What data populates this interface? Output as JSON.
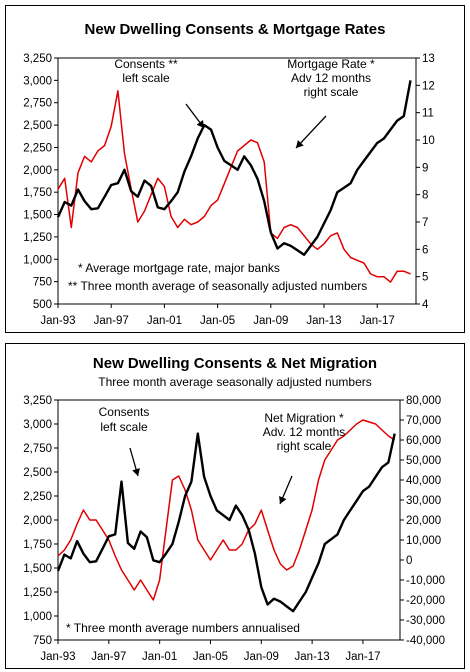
{
  "chart_data": [
    {
      "type": "line",
      "title": "New Dwelling Consents & Mortgage Rates",
      "subtitle": "",
      "x_ticks": [
        "Jan-93",
        "Jan-97",
        "Jan-01",
        "Jan-05",
        "Jan-09",
        "Jan-13",
        "Jan-17"
      ],
      "x_range": [
        "1993-01",
        "2019-12"
      ],
      "left_ylim": [
        500,
        3250
      ],
      "left_ticks": [
        "500",
        "750",
        "1,000",
        "1,250",
        "1,500",
        "1,750",
        "2,000",
        "2,250",
        "2,500",
        "2,750",
        "3,000",
        "3,250"
      ],
      "right_ylim": [
        4,
        13
      ],
      "right_ticks": [
        "4",
        "5",
        "6",
        "7",
        "8",
        "9",
        "10",
        "11",
        "12",
        "13"
      ],
      "grid": false,
      "annotations": [
        {
          "lines": [
            "Consents **",
            "left scale"
          ]
        },
        {
          "lines": [
            "Mortgage Rate *",
            "Adv 12 months",
            "right scale"
          ]
        }
      ],
      "notes": [
        "* Average mortgage rate, major banks",
        "** Three month average of seasonally adjusted numbers"
      ],
      "series": [
        {
          "axis": "left",
          "color": "#000000",
          "x": [
            "1993-01",
            "1993-07",
            "1994-01",
            "1994-07",
            "1995-01",
            "1995-07",
            "1996-01",
            "1996-07",
            "1997-01",
            "1997-07",
            "1998-01",
            "1998-07",
            "1999-01",
            "1999-07",
            "2000-01",
            "2000-07",
            "2001-01",
            "2001-07",
            "2002-01",
            "2002-07",
            "2003-01",
            "2003-07",
            "2004-01",
            "2004-07",
            "2005-01",
            "2005-07",
            "2006-01",
            "2006-07",
            "2007-01",
            "2007-07",
            "2008-01",
            "2008-07",
            "2009-01",
            "2009-07",
            "2010-01",
            "2010-07",
            "2011-01",
            "2011-07",
            "2012-01",
            "2012-07",
            "2013-01",
            "2013-07",
            "2014-01",
            "2014-07",
            "2015-01",
            "2015-07",
            "2016-01",
            "2016-07",
            "2017-01",
            "2017-07",
            "2018-01",
            "2018-07",
            "2019-01",
            "2019-07"
          ],
          "values": [
            1470,
            1640,
            1600,
            1780,
            1650,
            1560,
            1570,
            1700,
            1830,
            1850,
            2000,
            1760,
            1700,
            1880,
            1820,
            1580,
            1560,
            1650,
            1750,
            1980,
            2150,
            2350,
            2500,
            2450,
            2250,
            2100,
            2050,
            2000,
            2150,
            2050,
            1900,
            1650,
            1300,
            1120,
            1180,
            1150,
            1100,
            1050,
            1150,
            1250,
            1400,
            1550,
            1750,
            1800,
            1850,
            2000,
            2100,
            2200,
            2300,
            2350,
            2450,
            2550,
            2600,
            3000
          ]
        },
        {
          "axis": "right",
          "color": "#e00000",
          "x": [
            "1993-01",
            "1993-07",
            "1994-01",
            "1994-07",
            "1995-01",
            "1995-07",
            "1996-01",
            "1996-07",
            "1997-01",
            "1997-07",
            "1998-01",
            "1998-07",
            "1999-01",
            "1999-07",
            "2000-01",
            "2000-07",
            "2001-01",
            "2001-07",
            "2002-01",
            "2002-07",
            "2003-01",
            "2003-07",
            "2004-01",
            "2004-07",
            "2005-01",
            "2005-07",
            "2006-01",
            "2006-07",
            "2007-01",
            "2007-07",
            "2008-01",
            "2008-07",
            "2009-01",
            "2009-07",
            "2010-01",
            "2010-07",
            "2011-01",
            "2011-07",
            "2012-01",
            "2012-07",
            "2013-01",
            "2013-07",
            "2014-01",
            "2014-07",
            "2015-01",
            "2015-07",
            "2016-01",
            "2016-07",
            "2017-01",
            "2017-07",
            "2018-01",
            "2018-07",
            "2019-01",
            "2019-07"
          ],
          "values": [
            8.2,
            8.6,
            6.8,
            8.8,
            9.4,
            9.2,
            9.6,
            9.8,
            10.5,
            11.8,
            9.5,
            8.2,
            7.0,
            7.4,
            8.0,
            8.6,
            8.3,
            7.2,
            6.8,
            7.1,
            6.9,
            7.0,
            7.2,
            7.6,
            7.8,
            8.4,
            9.0,
            9.6,
            9.8,
            10.0,
            9.9,
            9.2,
            6.6,
            6.4,
            6.8,
            6.9,
            6.8,
            6.5,
            6.2,
            6.0,
            6.2,
            6.5,
            6.6,
            6.0,
            5.7,
            5.6,
            5.5,
            5.1,
            5.0,
            5.0,
            4.8,
            5.2,
            5.2,
            5.1
          ]
        }
      ]
    },
    {
      "type": "line",
      "title": "New Dwelling Consents & Net Migration",
      "subtitle": "Three month average seasonally adjusted numbers",
      "x_ticks": [
        "Jan-93",
        "Jan-97",
        "Jan-01",
        "Jan-05",
        "Jan-09",
        "Jan-13",
        "Jan-17"
      ],
      "x_range": [
        "1993-01",
        "2019-12"
      ],
      "left_ylim": [
        750,
        3250
      ],
      "left_ticks": [
        "750",
        "1,000",
        "1,250",
        "1,500",
        "1,750",
        "2,000",
        "2,250",
        "2,500",
        "2,750",
        "3,000",
        "3,250"
      ],
      "right_ylim": [
        -40000,
        80000
      ],
      "right_ticks": [
        "-40,000",
        "-30,000",
        "-20,000",
        "-10,000",
        "0",
        "10,000",
        "20,000",
        "30,000",
        "40,000",
        "50,000",
        "60,000",
        "70,000",
        "80,000"
      ],
      "grid": false,
      "annotations": [
        {
          "lines": [
            "Consents",
            "left scale"
          ]
        },
        {
          "lines": [
            "Net Migration *",
            "Adv. 12 months",
            "right scale"
          ]
        }
      ],
      "notes": [
        "* Three month average numbers annualised"
      ],
      "series": [
        {
          "axis": "left",
          "color": "#000000",
          "x": [
            "1993-01",
            "1993-07",
            "1994-01",
            "1994-07",
            "1995-01",
            "1995-07",
            "1996-01",
            "1996-07",
            "1997-01",
            "1997-07",
            "1998-01",
            "1998-07",
            "1999-01",
            "1999-07",
            "2000-01",
            "2000-07",
            "2001-01",
            "2001-07",
            "2002-01",
            "2002-07",
            "2003-01",
            "2003-07",
            "2004-01",
            "2004-07",
            "2005-01",
            "2005-07",
            "2006-01",
            "2006-07",
            "2007-01",
            "2007-07",
            "2008-01",
            "2008-07",
            "2009-01",
            "2009-07",
            "2010-01",
            "2010-07",
            "2011-01",
            "2011-07",
            "2012-01",
            "2012-07",
            "2013-01",
            "2013-07",
            "2014-01",
            "2014-07",
            "2015-01",
            "2015-07",
            "2016-01",
            "2016-07",
            "2017-01",
            "2017-07",
            "2018-01",
            "2018-07",
            "2019-01",
            "2019-07"
          ],
          "values": [
            1470,
            1640,
            1600,
            1780,
            1650,
            1560,
            1570,
            1700,
            1830,
            1850,
            2400,
            1760,
            1700,
            1880,
            1820,
            1580,
            1560,
            1650,
            1750,
            1980,
            2250,
            2400,
            2900,
            2450,
            2250,
            2100,
            2050,
            2000,
            2150,
            2050,
            1900,
            1650,
            1300,
            1120,
            1180,
            1150,
            1100,
            1050,
            1150,
            1250,
            1400,
            1550,
            1750,
            1800,
            1850,
            2000,
            2100,
            2200,
            2300,
            2350,
            2450,
            2550,
            2600,
            2900
          ]
        },
        {
          "axis": "right",
          "color": "#e00000",
          "x": [
            "1993-01",
            "1993-07",
            "1994-01",
            "1994-07",
            "1995-01",
            "1995-07",
            "1996-01",
            "1996-07",
            "1997-01",
            "1997-07",
            "1998-01",
            "1998-07",
            "1999-01",
            "1999-07",
            "2000-01",
            "2000-07",
            "2001-01",
            "2001-07",
            "2002-01",
            "2002-07",
            "2003-01",
            "2003-07",
            "2004-01",
            "2004-07",
            "2005-01",
            "2005-07",
            "2006-01",
            "2006-07",
            "2007-01",
            "2007-07",
            "2008-01",
            "2008-07",
            "2009-01",
            "2009-07",
            "2010-01",
            "2010-07",
            "2011-01",
            "2011-07",
            "2012-01",
            "2012-07",
            "2013-01",
            "2013-07",
            "2014-01",
            "2014-07",
            "2015-01",
            "2015-07",
            "2016-01",
            "2016-07",
            "2017-01",
            "2017-07",
            "2018-01",
            "2018-07",
            "2019-01",
            "2019-07"
          ],
          "values": [
            2000,
            5000,
            10000,
            18000,
            25000,
            20000,
            20000,
            15000,
            10000,
            2000,
            -5000,
            -10000,
            -15000,
            -10000,
            -15000,
            -20000,
            -10000,
            15000,
            40000,
            42000,
            35000,
            25000,
            10000,
            5000,
            0,
            5000,
            10000,
            5000,
            5000,
            8000,
            15000,
            18000,
            25000,
            15000,
            5000,
            -2000,
            -5000,
            -3000,
            5000,
            15000,
            25000,
            40000,
            50000,
            55000,
            60000,
            62000,
            65000,
            68000,
            70000,
            69000,
            68000,
            65000,
            62000,
            60000
          ]
        }
      ]
    }
  ]
}
